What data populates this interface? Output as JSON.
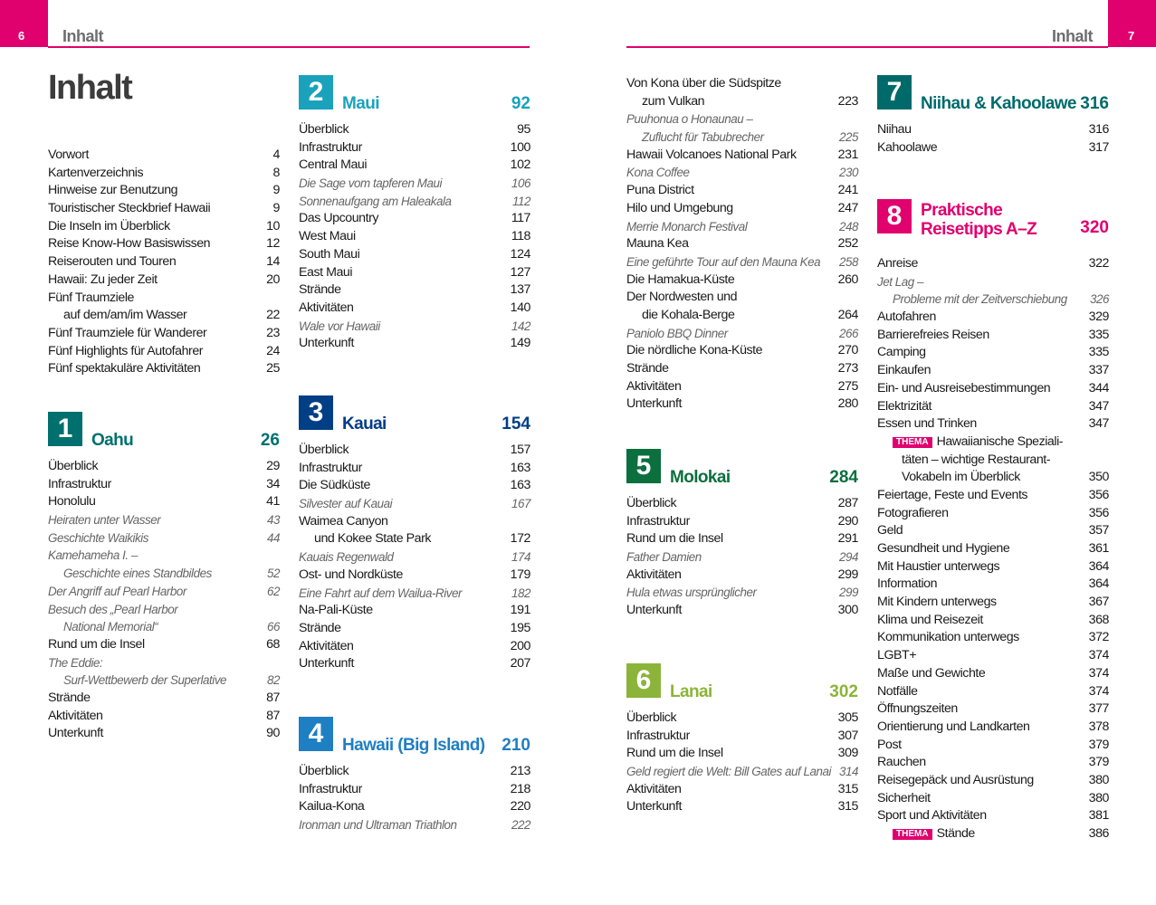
{
  "left_page": {
    "number": "6",
    "running_head": "Inhalt",
    "title": "Inhalt"
  },
  "right_page": {
    "number": "7",
    "running_head": "Inhalt"
  },
  "colors": {
    "accent": "#e0006e"
  },
  "columns": [
    [
      {
        "entries": [
          {
            "t": "Vorwort",
            "p": "4"
          },
          {
            "t": "Kartenverzeichnis",
            "p": "8"
          },
          {
            "t": "Hinweise zur Benutzung",
            "p": "9"
          },
          {
            "t": "Touristischer Steckbrief Hawaii",
            "p": "9"
          },
          {
            "t": "Die Inseln im Überblick",
            "p": "10"
          },
          {
            "t": "Reise Know-How Basiswissen",
            "p": "12"
          },
          {
            "t": "Reiserouten und Touren",
            "p": "14"
          },
          {
            "t": "Hawaii: Zu jeder Zeit",
            "p": "20"
          },
          {
            "t": "Fünf Traumziele"
          },
          {
            "t": "auf dem/am/im Wasser",
            "p": "22",
            "ind": true
          },
          {
            "t": "Fünf Traumziele für Wanderer",
            "p": "23"
          },
          {
            "t": "Fünf Highlights für Autofahrer",
            "p": "24"
          },
          {
            "t": "Fünf spektakuläre Aktivitäten",
            "p": "25"
          }
        ]
      },
      {
        "num": "1",
        "title": "Oahu",
        "page": "26",
        "color": "#00706f",
        "entries": [
          {
            "t": "Überblick",
            "p": "29"
          },
          {
            "t": "Infrastruktur",
            "p": "34"
          },
          {
            "t": "Honolulu",
            "p": "41"
          },
          {
            "t": "Heiraten unter Wasser",
            "p": "43",
            "i": true
          },
          {
            "t": "Geschichte Waikikis",
            "p": "44",
            "i": true
          },
          {
            "t": "Kamehameha I. –",
            "i": true
          },
          {
            "t": "Geschichte eines Standbildes",
            "p": "52",
            "i": true,
            "ind": true
          },
          {
            "t": "Der Angriff auf Pearl Harbor",
            "p": "62",
            "i": true
          },
          {
            "t": "Besuch des „Pearl Harbor",
            "i": true
          },
          {
            "t": "National Memorial“",
            "p": "66",
            "i": true,
            "ind": true
          },
          {
            "t": "Rund um die Insel",
            "p": "68"
          },
          {
            "t": "The Eddie:",
            "i": true
          },
          {
            "t": "Surf-Wettbewerb der Superlative",
            "p": "82",
            "i": true,
            "ind": true
          },
          {
            "t": "Strände",
            "p": "87"
          },
          {
            "t": "Aktivitäten",
            "p": "87"
          },
          {
            "t": "Unterkunft",
            "p": "90"
          }
        ]
      }
    ],
    [
      {
        "num": "2",
        "title": "Maui",
        "page": "92",
        "color": "#1aa2bd",
        "entries": [
          {
            "t": "Überblick",
            "p": "95"
          },
          {
            "t": "Infrastruktur",
            "p": "100"
          },
          {
            "t": "Central Maui",
            "p": "102"
          },
          {
            "t": "Die Sage vom tapferen Maui",
            "p": "106",
            "i": true
          },
          {
            "t": "Sonnenaufgang am Haleakala",
            "p": "112",
            "i": true
          },
          {
            "t": "Das Upcountry",
            "p": "117"
          },
          {
            "t": "West Maui",
            "p": "118"
          },
          {
            "t": "South Maui",
            "p": "124"
          },
          {
            "t": "East Maui",
            "p": "127"
          },
          {
            "t": "Strände",
            "p": "137"
          },
          {
            "t": "Aktivitäten",
            "p": "140"
          },
          {
            "t": "Wale vor Hawaii",
            "p": "142",
            "i": true
          },
          {
            "t": "Unterkunft",
            "p": "149"
          }
        ]
      },
      {
        "num": "3",
        "title": "Kauai",
        "page": "154",
        "color": "#003e86",
        "entries": [
          {
            "t": "Überblick",
            "p": "157"
          },
          {
            "t": "Infrastruktur",
            "p": "163"
          },
          {
            "t": "Die Südküste",
            "p": "163"
          },
          {
            "t": "Silvester auf Kauai",
            "p": "167",
            "i": true
          },
          {
            "t": "Waimea Canyon"
          },
          {
            "t": "und Kokee State Park",
            "p": "172",
            "ind": true
          },
          {
            "t": "Kauais Regenwald",
            "p": "174",
            "i": true
          },
          {
            "t": "Ost- und Nordküste",
            "p": "179"
          },
          {
            "t": "Eine Fahrt auf dem Wailua-River",
            "p": "182",
            "i": true
          },
          {
            "t": "Na-Pali-Küste",
            "p": "191"
          },
          {
            "t": "Strände",
            "p": "195"
          },
          {
            "t": "Aktivitäten",
            "p": "200"
          },
          {
            "t": "Unterkunft",
            "p": "207"
          }
        ]
      },
      {
        "num": "4",
        "title": "Hawaii (Big Island)",
        "page": "210",
        "color": "#1f7fc3",
        "entries": [
          {
            "t": "Überblick",
            "p": "213"
          },
          {
            "t": "Infrastruktur",
            "p": "218"
          },
          {
            "t": "Kailua-Kona",
            "p": "220"
          },
          {
            "t": "Ironman und Ultraman Triathlon",
            "p": "222",
            "i": true
          }
        ]
      }
    ],
    [
      {
        "entries": [
          {
            "t": "Von Kona über die Südspitze"
          },
          {
            "t": "zum Vulkan",
            "p": "223",
            "ind": true
          },
          {
            "t": "Puuhonua o Honaunau –",
            "i": true
          },
          {
            "t": "Zuflucht für Tabubrecher",
            "p": "225",
            "i": true,
            "ind": true
          },
          {
            "t": "Hawaii Volcanoes National Park",
            "p": "231"
          },
          {
            "t": "Kona Coffee",
            "p": "230",
            "i": true
          },
          {
            "t": "Puna District",
            "p": "241"
          },
          {
            "t": "Hilo und Umgebung",
            "p": "247"
          },
          {
            "t": "Merrie Monarch Festival",
            "p": "248",
            "i": true
          },
          {
            "t": "Mauna Kea",
            "p": "252"
          },
          {
            "t": "Eine geführte Tour auf den Mauna Kea",
            "p": "258",
            "i": true
          },
          {
            "t": "Die Hamakua-Küste",
            "p": "260"
          },
          {
            "t": "Der Nordwesten und"
          },
          {
            "t": "die Kohala-Berge",
            "p": "264",
            "ind": true
          },
          {
            "t": "Paniolo BBQ Dinner",
            "p": "266",
            "i": true
          },
          {
            "t": "Die nördliche Kona-Küste",
            "p": "270"
          },
          {
            "t": "Strände",
            "p": "273"
          },
          {
            "t": "Aktivitäten",
            "p": "275"
          },
          {
            "t": "Unterkunft",
            "p": "280"
          }
        ]
      },
      {
        "num": "5",
        "title": "Molokai",
        "page": "284",
        "color": "#0b6f3e",
        "entries": [
          {
            "t": "Überblick",
            "p": "287"
          },
          {
            "t": "Infrastruktur",
            "p": "290"
          },
          {
            "t": "Rund um die Insel",
            "p": "291"
          },
          {
            "t": "Father Damien",
            "p": "294",
            "i": true
          },
          {
            "t": "Aktivitäten",
            "p": "299"
          },
          {
            "t": "Hula etwas ursprünglicher",
            "p": "299",
            "i": true
          },
          {
            "t": "Unterkunft",
            "p": "300"
          }
        ]
      },
      {
        "num": "6",
        "title": "Lanai",
        "page": "302",
        "color": "#8cb43a",
        "entries": [
          {
            "t": "Überblick",
            "p": "305"
          },
          {
            "t": "Infrastruktur",
            "p": "307"
          },
          {
            "t": "Rund um die Insel",
            "p": "309"
          },
          {
            "t": "Geld regiert die Welt: Bill Gates auf Lanai",
            "p": "314",
            "i": true
          },
          {
            "t": "Aktivitäten",
            "p": "315"
          },
          {
            "t": "Unterkunft",
            "p": "315"
          }
        ]
      }
    ],
    [
      {
        "num": "7",
        "title": "Niihau & Kahoolawe",
        "page": "316",
        "color": "#006a6b",
        "entries": [
          {
            "t": "Niihau",
            "p": "316"
          },
          {
            "t": "Kahoolawe",
            "p": "317"
          }
        ]
      },
      {
        "num": "8",
        "title": "Praktische",
        "title2": "Reisetipps A–Z",
        "page": "320",
        "color": "#e0006e",
        "entries": [
          {
            "t": "Anreise",
            "p": "322"
          },
          {
            "t": "Jet Lag –",
            "i": true
          },
          {
            "t": "Probleme mit der Zeitverschiebung",
            "p": "326",
            "i": true,
            "ind": true
          },
          {
            "t": "Autofahren",
            "p": "329"
          },
          {
            "t": "Barrierefreies Reisen",
            "p": "335"
          },
          {
            "t": "Camping",
            "p": "335"
          },
          {
            "t": "Einkaufen",
            "p": "337"
          },
          {
            "t": "Ein- und Ausreisebestimmungen",
            "p": "344"
          },
          {
            "t": "Elektrizität",
            "p": "347"
          },
          {
            "t": "Essen und Trinken",
            "p": "347"
          },
          {
            "t": "Hawaiianische Speziali-",
            "badge": "THEMA",
            "ind": true
          },
          {
            "t": "täten – wichtige Restaurant-",
            "ind2": true
          },
          {
            "t": "Vokabeln im Überblick",
            "p": "350",
            "ind2": true
          },
          {
            "t": "Feiertage, Feste und Events",
            "p": "356"
          },
          {
            "t": "Fotografieren",
            "p": "356"
          },
          {
            "t": "Geld",
            "p": "357"
          },
          {
            "t": "Gesundheit und Hygiene",
            "p": "361"
          },
          {
            "t": "Mit Haustier unterwegs",
            "p": "364"
          },
          {
            "t": "Information",
            "p": "364"
          },
          {
            "t": "Mit Kindern unterwegs",
            "p": "367"
          },
          {
            "t": "Klima und Reisezeit",
            "p": "368"
          },
          {
            "t": "Kommunikation unterwegs",
            "p": "372"
          },
          {
            "t": "LGBT+",
            "p": "374"
          },
          {
            "t": "Maße und Gewichte",
            "p": "374"
          },
          {
            "t": "Notfälle",
            "p": "374"
          },
          {
            "t": "Öffnungszeiten",
            "p": "377"
          },
          {
            "t": "Orientierung und Landkarten",
            "p": "378"
          },
          {
            "t": "Post",
            "p": "379"
          },
          {
            "t": "Rauchen",
            "p": "379"
          },
          {
            "t": "Reisegepäck und Ausrüstung",
            "p": "380"
          },
          {
            "t": "Sicherheit",
            "p": "380"
          },
          {
            "t": "Sport und Aktivitäten",
            "p": "381"
          },
          {
            "t": "Stände",
            "p": "386",
            "badge": "THEMA",
            "ind": true
          }
        ]
      }
    ]
  ]
}
